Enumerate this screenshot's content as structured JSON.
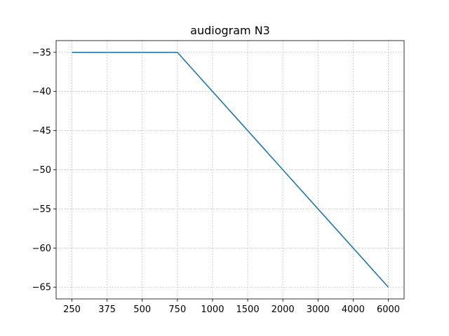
{
  "chart_data": {
    "type": "line",
    "title": "audiogram N3",
    "xlabel": "",
    "ylabel": "",
    "categories": [
      "250",
      "375",
      "500",
      "750",
      "1000",
      "1500",
      "2000",
      "3000",
      "4000",
      "6000"
    ],
    "series": [
      {
        "values": [
          -35,
          -35,
          -35,
          -35,
          -40,
          -45,
          -50,
          -55,
          -60,
          -65
        ],
        "color": "#1f77b4"
      }
    ],
    "yticks": [
      -35,
      -40,
      -45,
      -50,
      -55,
      -60,
      -65
    ],
    "ylim": [
      -66.5,
      -33.5
    ],
    "grid": true
  }
}
